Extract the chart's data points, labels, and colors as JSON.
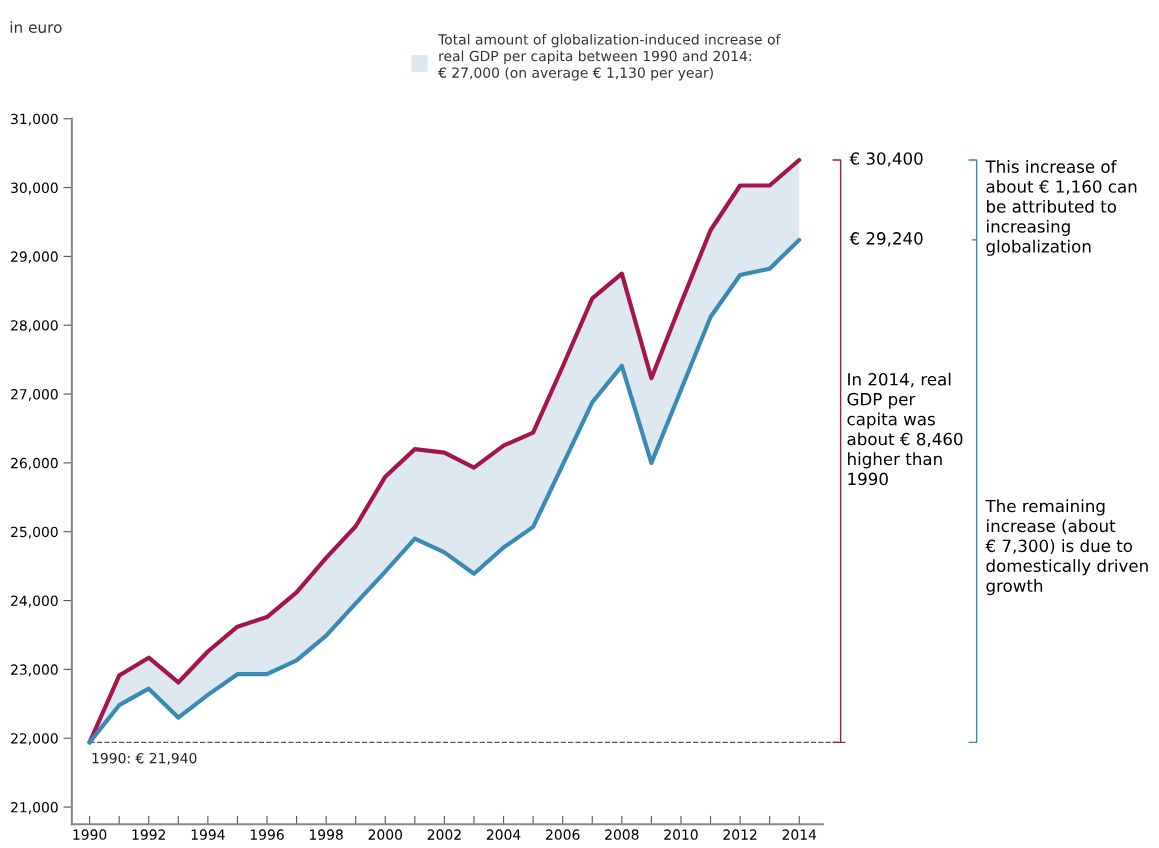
{
  "chart_data": {
    "type": "line",
    "x": [
      1990,
      1991,
      1992,
      1993,
      1994,
      1995,
      1996,
      1997,
      1998,
      1999,
      2000,
      2001,
      2002,
      2003,
      2004,
      2005,
      2006,
      2007,
      2008,
      2009,
      2010,
      2011,
      2012,
      2013,
      2014
    ],
    "series": [
      {
        "color": "#a3164b",
        "values": [
          21940,
          22910,
          23170,
          22810,
          23260,
          23620,
          23760,
          24120,
          24620,
          25080,
          25800,
          26200,
          26150,
          25930,
          26250,
          26440,
          27400,
          28390,
          28750,
          27230,
          28320,
          29380,
          30030,
          30030,
          30400
        ]
      },
      {
        "color": "#3a8ab4",
        "values": [
          21940,
          22480,
          22720,
          22300,
          22630,
          22930,
          22930,
          23130,
          23490,
          23960,
          24420,
          24900,
          24700,
          24390,
          24770,
          25070,
          25970,
          26880,
          27410,
          26000,
          27060,
          28120,
          28730,
          28820,
          29240
        ],
        "lower": [
          21940,
          22480,
          22720,
          22300,
          22630,
          22930,
          22930,
          23130,
          23490,
          23960,
          24420,
          24900,
          24700,
          24390,
          24770,
          25070,
          25970,
          26880,
          27410,
          26000,
          27060,
          28120,
          28730,
          28820,
          29240
        ],
        "upper": [
          21940,
          22910,
          23170,
          22810,
          23260,
          23620,
          23760,
          24120,
          24620,
          25080,
          25800,
          26200,
          26150,
          25930,
          26250,
          26440,
          27400,
          28390,
          28750,
          27230,
          28320,
          29380,
          30030,
          30030,
          30400
        ]
      }
    ],
    "xlim": [
      1989.4,
      2014.8
    ],
    "xticks": [
      1990,
      {
        "value": 1991,
        "label": null
      },
      1992,
      {
        "value": 1993,
        "label": null
      },
      1994,
      {
        "value": 1995,
        "label": null
      },
      1996,
      {
        "value": 1997,
        "label": null
      },
      1998,
      {
        "value": 1999,
        "label": null
      },
      2000,
      {
        "value": 2001,
        "label": null
      },
      2002,
      {
        "value": 2003,
        "label": null
      },
      2004,
      {
        "value": 2005,
        "label": null
      },
      2006,
      {
        "value": 2007,
        "label": null
      },
      2008,
      {
        "value": 2009,
        "label": null
      },
      2010,
      {
        "value": 2011,
        "label": null
      },
      2012,
      {
        "value": 2013,
        "label": null
      },
      2014
    ],
    "ylim": [
      20750,
      31000
    ],
    "yticks": [
      {
        "value": 21000,
        "label": "21,000"
      },
      {
        "value": 22000,
        "label": "22,000"
      },
      {
        "value": 23000,
        "label": "23,000"
      },
      {
        "value": 24000,
        "label": "24,000"
      },
      {
        "value": 25000,
        "label": "25,000"
      },
      {
        "value": 26000,
        "label": "26,000"
      },
      {
        "value": 27000,
        "label": "27,000"
      },
      {
        "value": 28000,
        "label": "28,000"
      },
      {
        "value": 29000,
        "label": "29,000"
      },
      {
        "value": 30000,
        "label": "30,000"
      },
      {
        "value": 31000,
        "label": "31,000"
      }
    ],
    "ref_lines": [
      {
        "axis": "y",
        "value": 21940,
        "label": "1990: € 21,940",
        "color": "#555555",
        "line_style": "dashed"
      }
    ],
    "annotations": [
      "€ 30,400",
      "€ 29,240",
      "In 2014, real\nGDP per\ncapita was\nabout € 8,460\nhigher than\n1990",
      "This increase of\nabout € 1,160 can\nbe attributed to\nincreasing\nglobalization",
      "The remaining\nincrease (about\n€ 7,300) is due to\ndomestically driven\ngrowth",
      "in euro",
      "Total amount of globalization-induced increase of\nreal GDP per capita between 1990 and 2014:\n€ 27,000 (on average € 1,130 per year)"
    ],
    "grid": false,
    "marker": "none",
    "line_style": "solid"
  }
}
